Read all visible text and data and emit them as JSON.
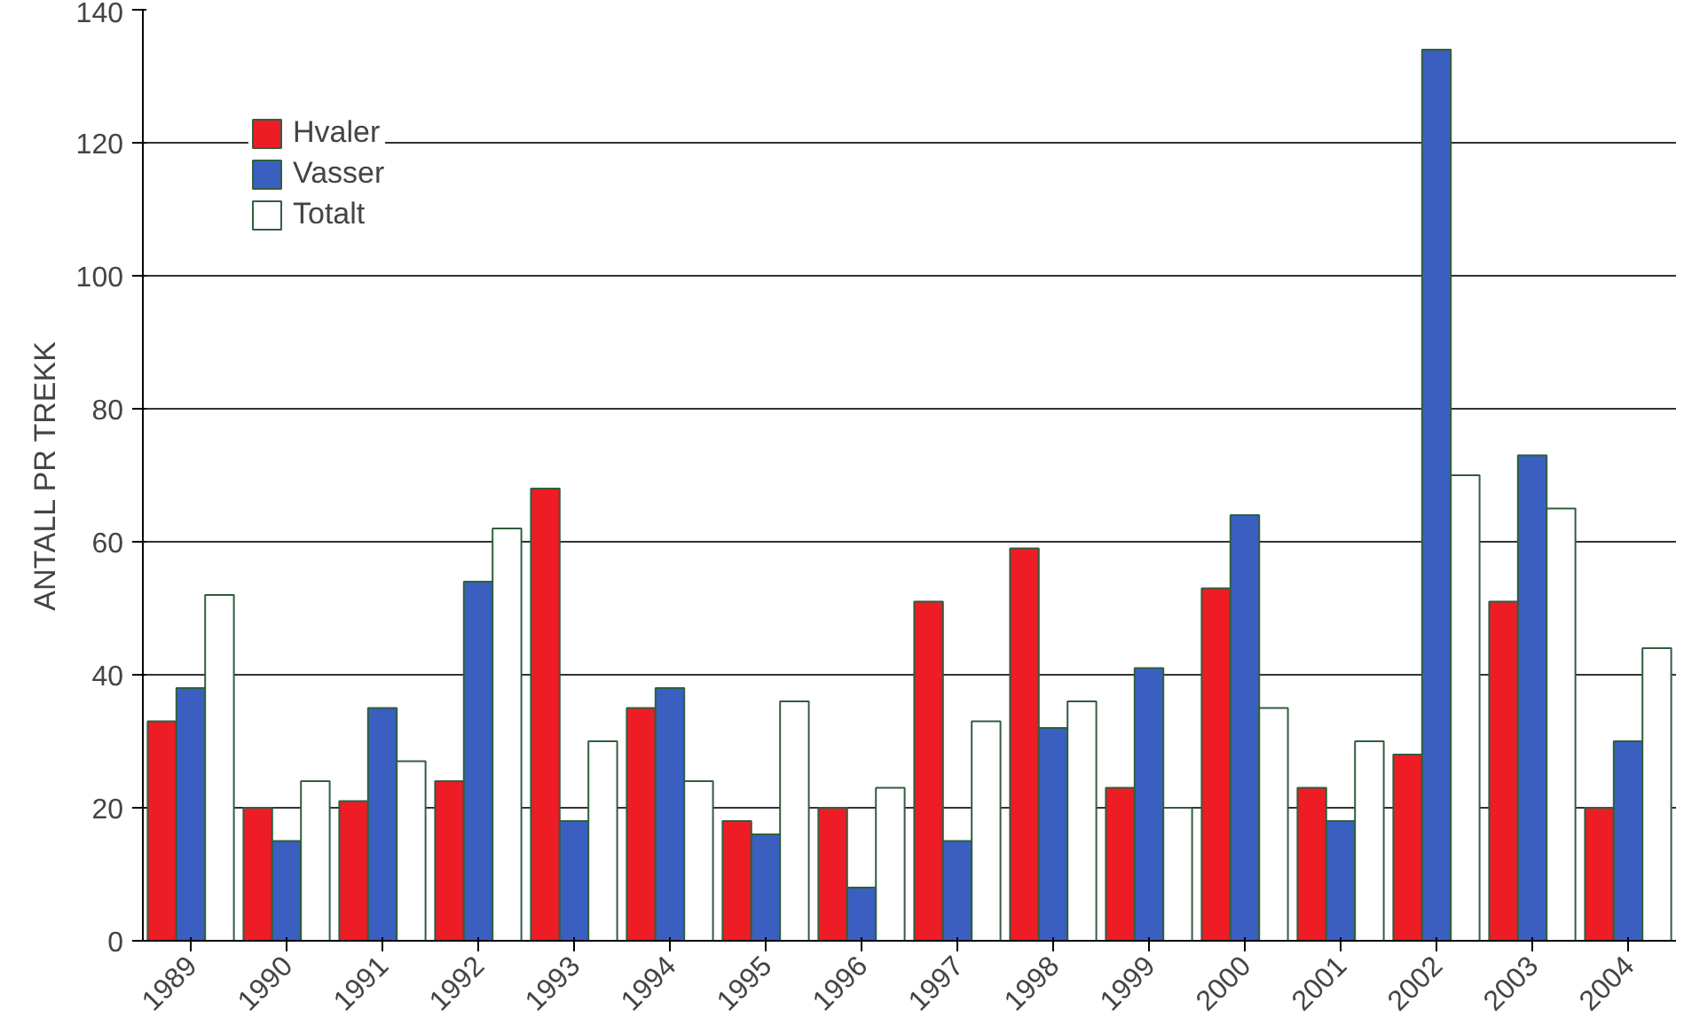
{
  "chart_data": {
    "type": "bar",
    "ylabel": "ANTALL PR TREKK",
    "categories": [
      "1989",
      "1990",
      "1991",
      "1992",
      "1993",
      "1994",
      "1995",
      "1996",
      "1997",
      "1998",
      "1999",
      "2000",
      "2001",
      "2002",
      "2003",
      "2004"
    ],
    "series": [
      {
        "name": "Hvaler",
        "color": "#ee1c25",
        "values": [
          33,
          20,
          21,
          24,
          68,
          35,
          18,
          20,
          51,
          59,
          23,
          53,
          23,
          28,
          51,
          20
        ]
      },
      {
        "name": "Vasser",
        "color": "#3a5fc0",
        "values": [
          38,
          15,
          35,
          54,
          18,
          38,
          16,
          8,
          15,
          32,
          41,
          64,
          18,
          134,
          73,
          30
        ]
      },
      {
        "name": "Totalt",
        "color": "#ffffff",
        "values": [
          52,
          24,
          27,
          62,
          30,
          24,
          36,
          23,
          33,
          36,
          20,
          35,
          30,
          70,
          65,
          44
        ]
      }
    ],
    "ylim": [
      0,
      140
    ],
    "yticks": [
      0,
      20,
      40,
      60,
      80,
      100,
      120,
      140
    ],
    "grid": "y",
    "legend": "top left"
  }
}
